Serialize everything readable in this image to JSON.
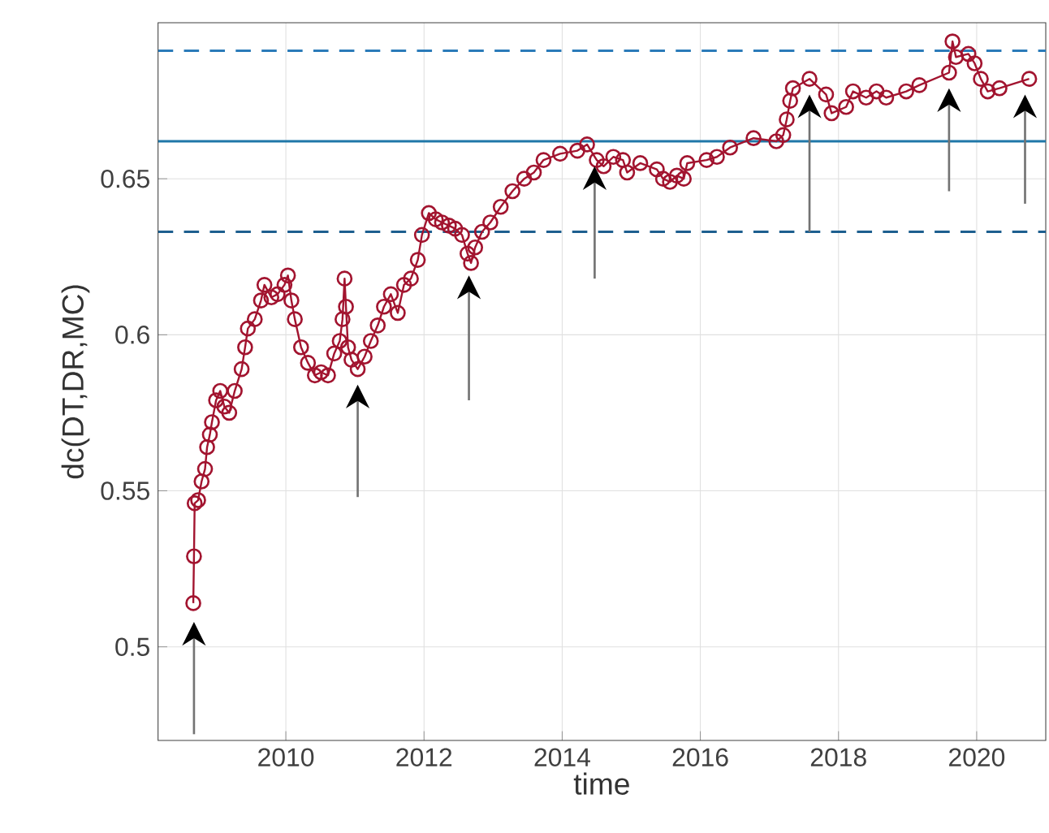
{
  "chart_data": {
    "type": "line",
    "xlabel": "time",
    "ylabel": "dc(DT,DR,MC)",
    "xlim": [
      2008.15,
      2021.0
    ],
    "ylim": [
      0.47,
      0.7
    ],
    "xticks": [
      2010,
      2012,
      2014,
      2016,
      2018,
      2020
    ],
    "yticks": [
      0.5,
      0.55,
      0.6,
      0.65
    ],
    "grid": true,
    "marker": "circle",
    "line_style": "solid",
    "series": [
      {
        "color": "#a2142f",
        "x": [
          2008.66,
          2008.67,
          2008.68,
          2008.73,
          2008.78,
          2008.83,
          2008.86,
          2008.9,
          2008.93,
          2008.99,
          2009.05,
          2009.11,
          2009.18,
          2009.26,
          2009.36,
          2009.41,
          2009.45,
          2009.55,
          2009.64,
          2009.69,
          2009.79,
          2009.88,
          2009.98,
          2010.03,
          2010.08,
          2010.13,
          2010.22,
          2010.32,
          2010.42,
          2010.51,
          2010.61,
          2010.7,
          2010.78,
          2010.82,
          2010.85,
          2010.87,
          2010.9,
          2010.95,
          2011.04,
          2011.14,
          2011.23,
          2011.33,
          2011.42,
          2011.52,
          2011.62,
          2011.71,
          2011.81,
          2011.91,
          2011.97,
          2012.07,
          2012.17,
          2012.26,
          2012.36,
          2012.45,
          2012.55,
          2012.63,
          2012.68,
          2012.74,
          2012.84,
          2012.96,
          2013.11,
          2013.28,
          2013.45,
          2013.59,
          2013.73,
          2013.97,
          2014.22,
          2014.36,
          2014.5,
          2014.6,
          2014.74,
          2014.88,
          2014.94,
          2015.13,
          2015.37,
          2015.46,
          2015.56,
          2015.66,
          2015.76,
          2015.81,
          2016.09,
          2016.24,
          2016.43,
          2016.77,
          2017.1,
          2017.2,
          2017.25,
          2017.3,
          2017.34,
          2017.58,
          2017.82,
          2017.9,
          2018.11,
          2018.21,
          2018.4,
          2018.55,
          2018.69,
          2018.98,
          2019.17,
          2019.6,
          2019.65,
          2019.7,
          2019.88,
          2019.97,
          2020.06,
          2020.16,
          2020.33,
          2020.76
        ],
        "values": [
          0.514,
          0.529,
          0.546,
          0.547,
          0.553,
          0.557,
          0.564,
          0.568,
          0.572,
          0.579,
          0.582,
          0.577,
          0.575,
          0.582,
          0.589,
          0.596,
          0.602,
          0.605,
          0.611,
          0.616,
          0.612,
          0.613,
          0.616,
          0.619,
          0.611,
          0.605,
          0.596,
          0.591,
          0.587,
          0.588,
          0.587,
          0.594,
          0.598,
          0.605,
          0.618,
          0.609,
          0.596,
          0.592,
          0.589,
          0.593,
          0.598,
          0.603,
          0.609,
          0.613,
          0.607,
          0.616,
          0.618,
          0.624,
          0.632,
          0.639,
          0.637,
          0.636,
          0.635,
          0.634,
          0.632,
          0.626,
          0.623,
          0.628,
          0.633,
          0.636,
          0.641,
          0.646,
          0.65,
          0.652,
          0.656,
          0.658,
          0.659,
          0.661,
          0.656,
          0.654,
          0.657,
          0.656,
          0.652,
          0.655,
          0.653,
          0.65,
          0.649,
          0.651,
          0.65,
          0.655,
          0.656,
          0.657,
          0.66,
          0.663,
          0.662,
          0.664,
          0.669,
          0.675,
          0.679,
          0.682,
          0.677,
          0.671,
          0.673,
          0.678,
          0.676,
          0.678,
          0.676,
          0.678,
          0.68,
          0.684,
          0.694,
          0.689,
          0.69,
          0.687,
          0.682,
          0.678,
          0.679,
          0.682
        ]
      }
    ],
    "ref_lines": [
      {
        "axis": "y",
        "value": 0.691,
        "color": "#2b7bb9",
        "line_style": "dashed"
      },
      {
        "axis": "y",
        "value": 0.662,
        "color": "#1f77a8",
        "line_style": "solid"
      },
      {
        "axis": "y",
        "value": 0.633,
        "color": "#1d5f8f",
        "line_style": "dashed"
      }
    ]
  }
}
